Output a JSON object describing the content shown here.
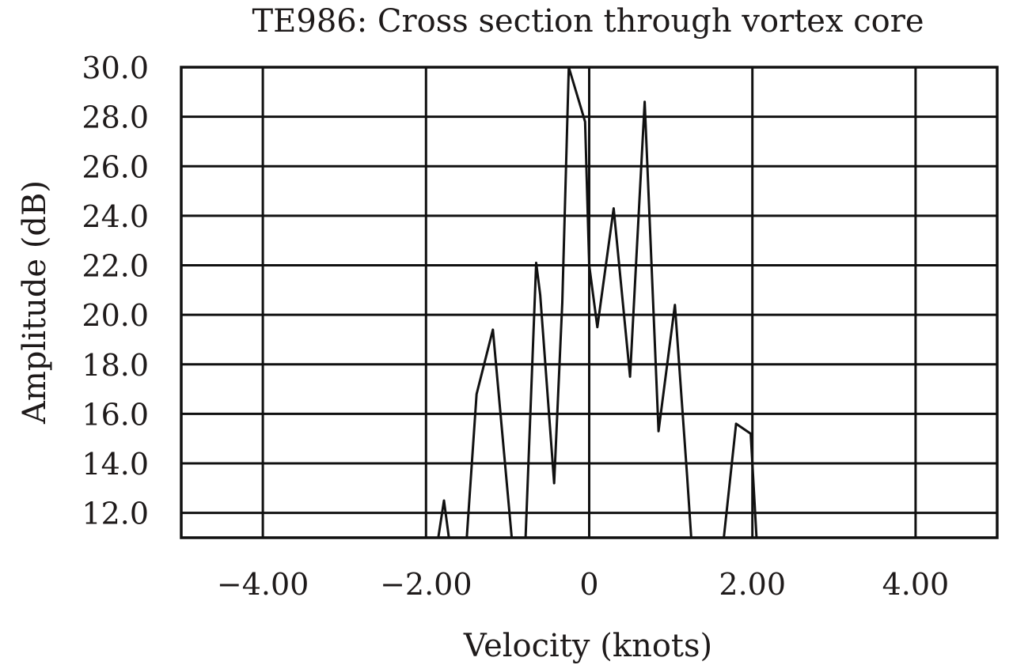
{
  "chart_data": {
    "type": "line",
    "title": "TE986: Cross section through vortex core",
    "xlabel": "Velocity (knots)",
    "ylabel": "Amplitude (dB)",
    "xlim": [
      -5.0,
      5.0
    ],
    "ylim": [
      11.0,
      30.0
    ],
    "xticks": [
      -4.0,
      -2.0,
      0.0,
      2.0,
      4.0
    ],
    "xtick_labels": [
      "−4.00",
      "−2.00",
      "0",
      "2.00",
      "4.00"
    ],
    "yticks": [
      12.0,
      14.0,
      16.0,
      18.0,
      20.0,
      22.0,
      24.0,
      26.0,
      28.0,
      30.0
    ],
    "ytick_labels": [
      "12.0",
      "14.0",
      "16.0",
      "18.0",
      "20.0",
      "22.0",
      "24.0",
      "26.0",
      "28.0",
      "30.0"
    ],
    "grid": true,
    "series": [
      {
        "x": [
          -2.1,
          -1.85,
          -1.78,
          -1.72,
          -1.68,
          -1.5,
          -1.38,
          -1.18,
          -0.95,
          -0.88,
          -0.78,
          -0.65,
          -0.6,
          -0.43,
          -0.33,
          -0.25,
          -0.05,
          0.0,
          0.1,
          0.3,
          0.5,
          0.68,
          0.85,
          1.05,
          1.2,
          1.25,
          1.65,
          1.8,
          1.98,
          2.05,
          2.1
        ],
        "y": [
          11.0,
          11.0,
          12.5,
          11.0,
          11.0,
          11.0,
          16.8,
          19.4,
          11.0,
          11.0,
          11.0,
          22.1,
          20.8,
          13.2,
          20.5,
          30.0,
          27.8,
          22.0,
          19.5,
          24.3,
          17.5,
          28.6,
          15.3,
          20.4,
          13.5,
          11.0,
          11.0,
          15.6,
          15.2,
          11.0,
          11.0
        ]
      }
    ]
  }
}
